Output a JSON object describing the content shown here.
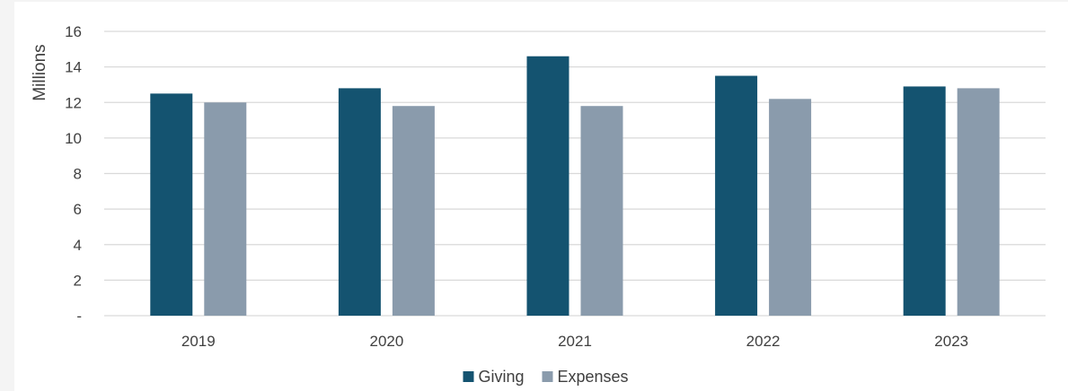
{
  "chart_data": {
    "type": "bar",
    "categories": [
      "2019",
      "2020",
      "2021",
      "2022",
      "2023"
    ],
    "series": [
      {
        "name": "Giving",
        "values": [
          12.5,
          12.8,
          14.6,
          13.5,
          12.9
        ]
      },
      {
        "name": "Expenses",
        "values": [
          12.0,
          11.8,
          11.8,
          12.2,
          12.8
        ]
      }
    ],
    "ylabel": "Millions",
    "xlabel": "",
    "ylim": [
      0,
      16
    ],
    "yticks": [
      0,
      2,
      4,
      6,
      8,
      10,
      12,
      14,
      16
    ],
    "ytick_labels": [
      "-",
      "2",
      "4",
      "6",
      "8",
      "10",
      "12",
      "14",
      "16"
    ],
    "grid": true,
    "legend_position": "bottom-center",
    "colors": {
      "Giving": "#145370",
      "Expenses": "#8a9bac",
      "grid": "#d9d9d9",
      "text": "#404040"
    }
  }
}
